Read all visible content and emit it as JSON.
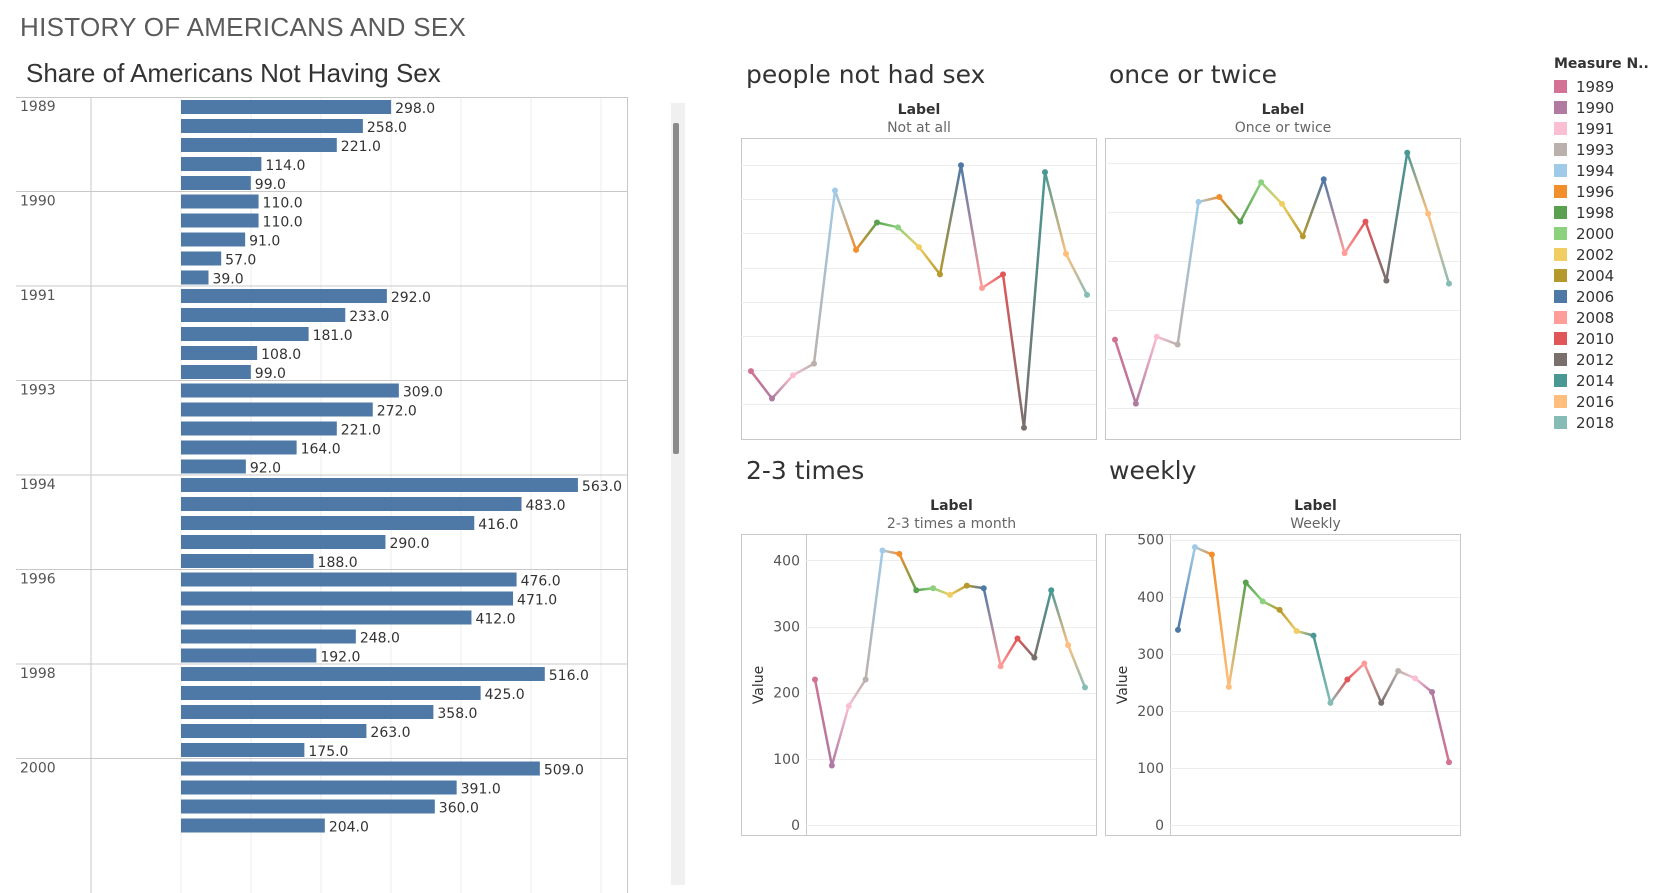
{
  "dashboard": {
    "title": "HISTORY OF AMERICANS AND SEX"
  },
  "bar_panel": {
    "title": "Share of Americans Not Having Sex"
  },
  "panels": [
    {
      "title": "people not had sex",
      "header_label": "Label",
      "header_value": "Not at all"
    },
    {
      "title": "once or twice",
      "header_label": "Label",
      "header_value": "Once or twice"
    },
    {
      "title": "2-3 times",
      "header_label": "Label",
      "header_value": "2-3 times a month",
      "ylabel": "Value"
    },
    {
      "title": "weekly",
      "header_label": "Label",
      "header_value": "Weekly",
      "ylabel": "Value"
    }
  ],
  "legend": {
    "title": "Measure N..",
    "items": [
      {
        "label": "1989",
        "color": "#d37295"
      },
      {
        "label": "1990",
        "color": "#b07aa1"
      },
      {
        "label": "1991",
        "color": "#fabfd2"
      },
      {
        "label": "1993",
        "color": "#bab0ac"
      },
      {
        "label": "1994",
        "color": "#a0cbe8"
      },
      {
        "label": "1996",
        "color": "#f28e2b"
      },
      {
        "label": "1998",
        "color": "#59a14f"
      },
      {
        "label": "2000",
        "color": "#8cd17d"
      },
      {
        "label": "2002",
        "color": "#f1ce63"
      },
      {
        "label": "2004",
        "color": "#b6992d"
      },
      {
        "label": "2006",
        "color": "#4e79a7"
      },
      {
        "label": "2008",
        "color": "#ff9d9a"
      },
      {
        "label": "2010",
        "color": "#e15759"
      },
      {
        "label": "2012",
        "color": "#79706e"
      },
      {
        "label": "2014",
        "color": "#499894"
      },
      {
        "label": "2016",
        "color": "#ffbe7d"
      },
      {
        "label": "2018",
        "color": "#86bcb6"
      }
    ]
  },
  "chart_data": [
    {
      "type": "bar",
      "orientation": "horizontal",
      "title": "Share of Americans Not Having Sex",
      "bar_color": "#4e79a7",
      "xlim": [
        0,
        640
      ],
      "groups": [
        {
          "label": "1989",
          "values": [
            298.0,
            258.0,
            221.0,
            114.0,
            99.0
          ],
          "value_labels": [
            "298.0",
            "258.0",
            "221.0",
            "114.0",
            "99.0"
          ]
        },
        {
          "label": "1990",
          "values": [
            110.0,
            110.0,
            91.0,
            57.0,
            39.0
          ],
          "value_labels": [
            "110.0",
            "110.0",
            "91.0",
            "57.0",
            "39.0"
          ]
        },
        {
          "label": "1991",
          "values": [
            292.0,
            233.0,
            181.0,
            108.0,
            99.0
          ],
          "value_labels": [
            "292.0",
            "233.0",
            "181.0",
            "108.0",
            "99.0"
          ]
        },
        {
          "label": "1993",
          "values": [
            309.0,
            272.0,
            221.0,
            164.0,
            92.0
          ],
          "value_labels": [
            "309.0",
            "272.0",
            "221.0",
            "164.0",
            "92.0"
          ]
        },
        {
          "label": "1994",
          "values": [
            563.0,
            483.0,
            416.0,
            290.0,
            188.0
          ],
          "value_labels": [
            "563.0",
            "483.0",
            "416.0",
            "290.0",
            "188.0"
          ]
        },
        {
          "label": "1996",
          "values": [
            476.0,
            471.0,
            412.0,
            248.0,
            192.0
          ],
          "value_labels": [
            "476.0",
            "471.0",
            "412.0",
            "248.0",
            "192.0"
          ]
        },
        {
          "label": "1998",
          "values": [
            516.0,
            425.0,
            358.0,
            263.0,
            175.0
          ],
          "value_labels": [
            "516.0",
            "425.0",
            "358.0",
            "263.0",
            "175.0"
          ]
        },
        {
          "label": "2000",
          "values": [
            509.0,
            391.0,
            360.0,
            204.0
          ],
          "value_labels": [
            "509.0",
            "391.0",
            "360.0",
            "204.0"
          ]
        }
      ]
    },
    {
      "type": "line",
      "title": "people not had sex",
      "x": [
        "1989",
        "1990",
        "1991",
        "1993",
        "1994",
        "1996",
        "1998",
        "2000",
        "2002",
        "2004",
        "2006",
        "2008",
        "2010",
        "2012",
        "2014",
        "2016",
        "2018"
      ],
      "values": [
        298,
        258,
        292,
        309,
        563,
        476,
        516,
        509,
        480,
        440,
        600,
        420,
        440,
        215,
        590,
        470,
        410
      ],
      "ylim": [
        200,
        640
      ],
      "yticks": [],
      "show_axis_labels": false
    },
    {
      "type": "line",
      "title": "once or twice",
      "x": [
        "1989",
        "1990",
        "1991",
        "1993",
        "1994",
        "1996",
        "1998",
        "2000",
        "2002",
        "2004",
        "2006",
        "2008",
        "2010",
        "2012",
        "2014",
        "2016",
        "2018"
      ],
      "values": [
        170,
        105,
        173,
        165,
        310,
        315,
        290,
        330,
        308,
        275,
        333,
        258,
        290,
        230,
        360,
        298,
        227
      ],
      "ylim": [
        70,
        375
      ],
      "yticks": [],
      "show_axis_labels": false
    },
    {
      "type": "line",
      "title": "2-3 times",
      "ylabel": "Value",
      "x": [
        "1989",
        "1990",
        "1991",
        "1993",
        "1994",
        "1996",
        "1998",
        "2000",
        "2002",
        "2004",
        "2006",
        "2008",
        "2010",
        "2012",
        "2014",
        "2016",
        "2018"
      ],
      "values": [
        220,
        90,
        180,
        220,
        415,
        410,
        355,
        358,
        348,
        362,
        358,
        240,
        282,
        253,
        355,
        272,
        208
      ],
      "ylim": [
        0,
        440
      ],
      "yticks": [
        0,
        100,
        200,
        300,
        400
      ]
    },
    {
      "type": "line",
      "title": "weekly",
      "ylabel": "Value",
      "x": [
        "2006",
        "1994",
        "1996",
        "2016",
        "1998",
        "2000",
        "2004",
        "2002",
        "2014",
        "2018",
        "2010",
        "2008",
        "2012",
        "1993",
        "1991",
        "1990",
        "1989"
      ],
      "values": [
        342,
        487,
        474,
        242,
        425,
        392,
        377,
        340,
        332,
        214,
        255,
        283,
        214,
        270,
        257,
        233,
        110
      ],
      "ylim": [
        0,
        510
      ],
      "yticks": [
        0,
        100,
        200,
        300,
        400,
        500
      ]
    }
  ]
}
